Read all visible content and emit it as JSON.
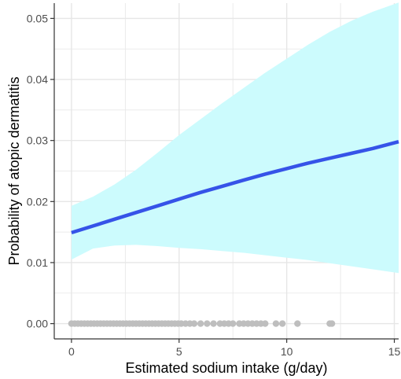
{
  "chart_data": {
    "type": "line",
    "xlabel": "Estimated sodium intake (g/day)",
    "ylabel": "Probability of atopic dermatitis",
    "xlim": [
      -0.8,
      15.2
    ],
    "ylim": [
      -0.0025,
      0.0525
    ],
    "x_ticks": [
      0,
      5,
      10,
      15
    ],
    "y_ticks": [
      0.0,
      0.01,
      0.02,
      0.03,
      0.04,
      0.05
    ],
    "x_tick_labels": [
      "0",
      "5",
      "10",
      "15"
    ],
    "y_tick_labels": [
      "0.00",
      "0.01",
      "0.02",
      "0.03",
      "0.04",
      "0.05"
    ],
    "grid": true,
    "series": [
      {
        "kind": "fitted-line",
        "x": [
          0,
          1,
          2,
          3,
          4,
          5,
          6,
          7,
          8,
          9,
          10,
          11,
          12,
          13,
          14,
          15.2
        ],
        "y": [
          0.0149,
          0.016,
          0.0171,
          0.0182,
          0.0193,
          0.0204,
          0.0215,
          0.0225,
          0.0235,
          0.0245,
          0.0254,
          0.0263,
          0.0271,
          0.0279,
          0.0287,
          0.0298
        ]
      },
      {
        "kind": "confidence-band",
        "x": [
          0,
          1,
          2,
          3,
          4,
          5,
          6,
          7,
          8,
          9,
          10,
          11,
          12,
          13,
          14,
          15.2
        ],
        "upper": [
          0.0193,
          0.0208,
          0.0228,
          0.0252,
          0.028,
          0.0309,
          0.0335,
          0.0361,
          0.0386,
          0.0411,
          0.0434,
          0.0457,
          0.0478,
          0.0496,
          0.0511,
          0.0526
        ],
        "lower": [
          0.0105,
          0.0123,
          0.0128,
          0.0129,
          0.0127,
          0.0124,
          0.0122,
          0.0119,
          0.0116,
          0.0112,
          0.0108,
          0.0104,
          0.0099,
          0.0094,
          0.0089,
          0.0083
        ]
      },
      {
        "kind": "observations",
        "y_value": 0,
        "x": [
          0,
          0.15,
          0.3,
          0.45,
          0.6,
          0.75,
          0.9,
          1.05,
          1.2,
          1.35,
          1.5,
          1.65,
          1.8,
          1.95,
          2.1,
          2.25,
          2.4,
          2.55,
          2.7,
          2.85,
          3.0,
          3.15,
          3.3,
          3.45,
          3.6,
          3.75,
          3.9,
          4.05,
          4.2,
          4.35,
          4.5,
          4.65,
          4.8,
          4.95,
          5.1,
          5.3,
          5.5,
          5.7,
          6.0,
          6.3,
          6.6,
          6.9,
          7.1,
          7.3,
          7.5,
          7.8,
          8.0,
          8.2,
          8.4,
          8.6,
          8.8,
          9.0,
          9.5,
          9.8,
          10.5,
          12.0,
          12.1
        ]
      }
    ],
    "colors": {
      "line": "#3653e8",
      "band": "#ccfbfd",
      "points": "#bebebe",
      "grid": "#e6e6e6",
      "axis": "#333333"
    }
  }
}
